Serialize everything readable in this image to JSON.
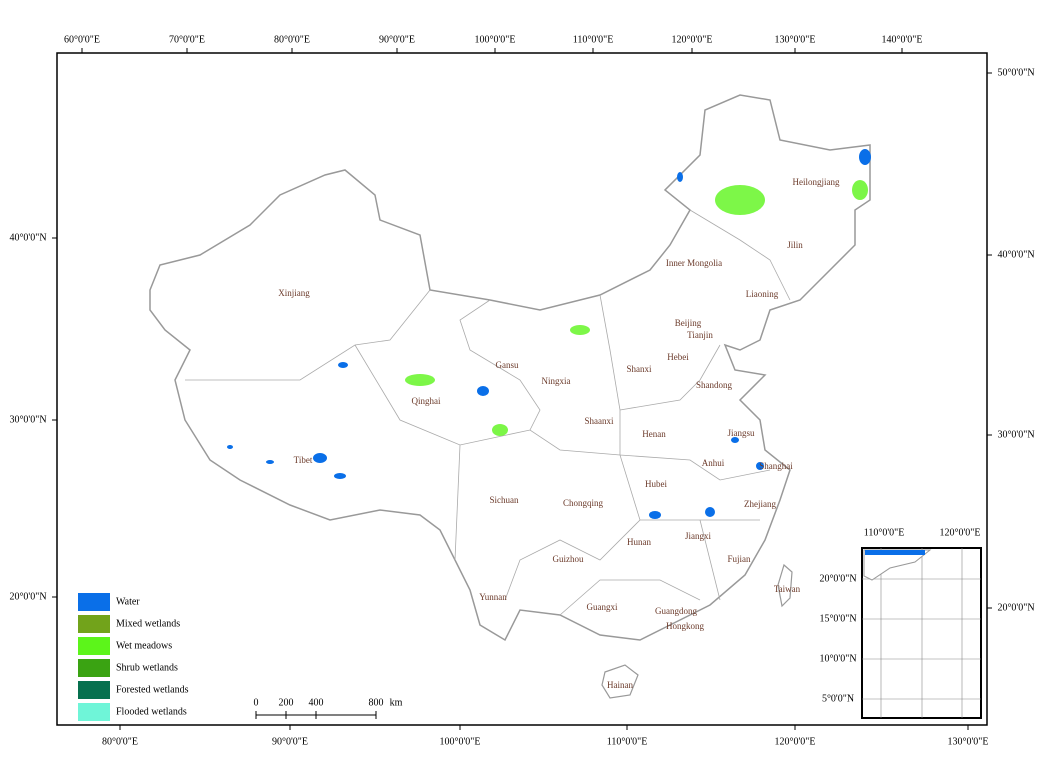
{
  "map": {
    "top_labels": [
      "60°0'0\"E",
      "70°0'0\"E",
      "80°0'0\"E",
      "90°0'0\"E",
      "100°0'0\"E",
      "110°0'0\"E",
      "120°0'0\"E",
      "130°0'0\"E",
      "140°0'0\"E"
    ],
    "bottom_labels": [
      "80°0'0\"E",
      "90°0'0\"E",
      "100°0'0\"E",
      "110°0'0\"E",
      "120°0'0\"E",
      "130°0'0\"E"
    ],
    "left_labels": [
      "40°0'0\"N",
      "30°0'0\"N",
      "20°0'0\"N"
    ],
    "right_labels": [
      "50°0'0\"N",
      "40°0'0\"N",
      "30°0'0\"N",
      "20°0'0\"N"
    ],
    "regions": [
      "Heilongjiang",
      "Jilin",
      "Inner Mongolia",
      "Liaoning",
      "Xinjiang",
      "Beijing",
      "Tianjin",
      "Gansu",
      "Hebei",
      "Ningxia",
      "Shanxi",
      "Shandong",
      "Qinghai",
      "Shaanxi",
      "Henan",
      "Jiangsu",
      "Tibet",
      "Anhui",
      "Shanghai",
      "Hubei",
      "Sichuan",
      "Chongqing",
      "Zhejiang",
      "Hunan",
      "Jiangxi",
      "Guizhou",
      "Fujian",
      "Taiwan",
      "Yunnan",
      "Guangxi",
      "Guangdong",
      "Hongkong",
      "Hainan"
    ],
    "legend": [
      {
        "label": "Water",
        "color": "#0a6fe8"
      },
      {
        "label": "Mixed wetlands",
        "color": "#72a31b"
      },
      {
        "label": "Wet meadows",
        "color": "#5cf51a"
      },
      {
        "label": "Shrub wetlands",
        "color": "#3aa312"
      },
      {
        "label": "Forested wetlands",
        "color": "#06704e"
      },
      {
        "label": "Flooded wetlands",
        "color": "#6ff5d8"
      }
    ],
    "scale_bar": {
      "ticks": [
        0,
        200,
        400,
        800
      ],
      "unit": "km"
    },
    "inset": {
      "top_labels": [
        "110°0'0\"E",
        "120°0'0\"E"
      ],
      "left_labels": [
        "20°0'0\"N",
        "15°0'0\"N",
        "10°0'0\"N",
        "5°0'0\"N"
      ]
    }
  }
}
